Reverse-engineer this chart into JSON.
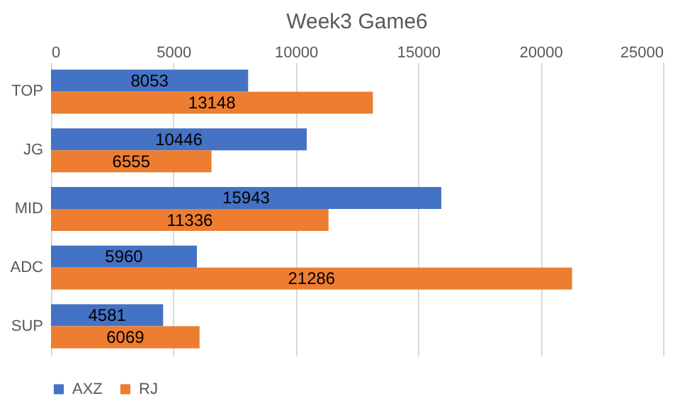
{
  "chart_data": {
    "type": "bar",
    "title": "Week3 Game6",
    "orientation": "horizontal",
    "categories": [
      "TOP",
      "JG",
      "MID",
      "ADC",
      "SUP"
    ],
    "series": [
      {
        "name": "AXZ",
        "color": "#4472c4",
        "values": [
          8053,
          10446,
          15943,
          5960,
          4581
        ]
      },
      {
        "name": "RJ",
        "color": "#ed7d31",
        "values": [
          13148,
          6555,
          11336,
          21286,
          6069
        ]
      }
    ],
    "xlim": [
      0,
      25000
    ],
    "xticks": [
      0,
      5000,
      10000,
      15000,
      20000,
      25000
    ],
    "grid": "x",
    "legend": "bottom",
    "data_labels": true
  }
}
